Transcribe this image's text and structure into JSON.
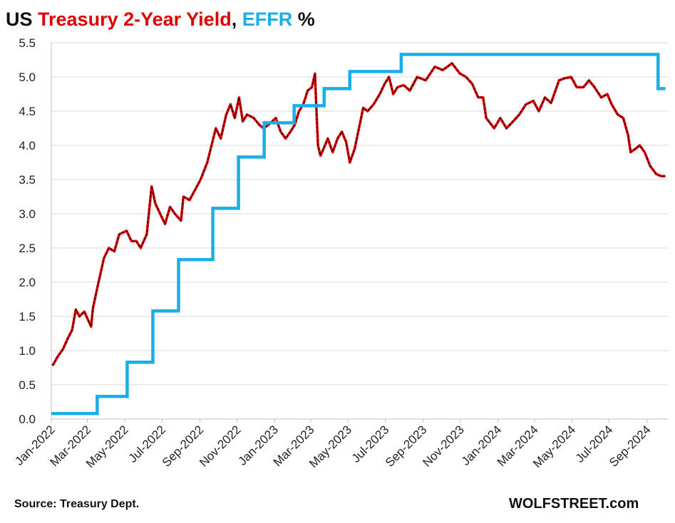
{
  "title": {
    "part1": "US ",
    "part2": "Treasury 2-Year Yield",
    "part3": ", ",
    "part4": "EFFR",
    "part5": " %",
    "color_dark": "#111111",
    "color_red": "#e00000",
    "color_blue": "#1aaee8"
  },
  "source": "Source: Treasury Dept.",
  "brand": "WOLFSTREET.com",
  "chart_data": {
    "type": "line",
    "title": "US Treasury 2-Year Yield, EFFR %",
    "xlabel": "",
    "ylabel": "",
    "ylim": [
      0,
      5.5
    ],
    "yticks": [
      "0.0",
      "0.5",
      "1.0",
      "1.5",
      "2.0",
      "2.5",
      "3.0",
      "3.5",
      "4.0",
      "4.5",
      "5.0",
      "5.5"
    ],
    "xticks": [
      "Jan-2022",
      "Mar-2022",
      "May-2022",
      "Jul-2022",
      "Sep-2022",
      "Nov-2022",
      "Jan-2023",
      "Mar-2023",
      "May-2023",
      "Jul-2023",
      "Sep-2023",
      "Nov-2023",
      "Jan-2024",
      "Mar-2024",
      "May-2024",
      "Jul-2024",
      "Sep-2024"
    ],
    "xrange": [
      "2022-01-01",
      "2024-10-05"
    ],
    "grid": true,
    "series": [
      {
        "name": "Treasury 2-Year Yield",
        "color": "#e00000",
        "shape": "line",
        "points": [
          [
            "2022-01-03",
            0.78
          ],
          [
            "2022-01-12",
            0.92
          ],
          [
            "2022-01-20",
            1.02
          ],
          [
            "2022-01-28",
            1.18
          ],
          [
            "2022-02-04",
            1.3
          ],
          [
            "2022-02-10",
            1.6
          ],
          [
            "2022-02-16",
            1.5
          ],
          [
            "2022-02-24",
            1.57
          ],
          [
            "2022-03-07",
            1.35
          ],
          [
            "2022-03-10",
            1.62
          ],
          [
            "2022-03-18",
            1.95
          ],
          [
            "2022-03-28",
            2.35
          ],
          [
            "2022-04-05",
            2.5
          ],
          [
            "2022-04-14",
            2.45
          ],
          [
            "2022-04-22",
            2.7
          ],
          [
            "2022-05-04",
            2.75
          ],
          [
            "2022-05-12",
            2.6
          ],
          [
            "2022-05-20",
            2.6
          ],
          [
            "2022-05-27",
            2.5
          ],
          [
            "2022-06-06",
            2.7
          ],
          [
            "2022-06-10",
            3.05
          ],
          [
            "2022-06-14",
            3.4
          ],
          [
            "2022-06-20",
            3.15
          ],
          [
            "2022-06-28",
            3.0
          ],
          [
            "2022-07-06",
            2.85
          ],
          [
            "2022-07-14",
            3.1
          ],
          [
            "2022-07-22",
            3.0
          ],
          [
            "2022-08-01",
            2.9
          ],
          [
            "2022-08-05",
            3.25
          ],
          [
            "2022-08-15",
            3.2
          ],
          [
            "2022-08-24",
            3.35
          ],
          [
            "2022-09-02",
            3.5
          ],
          [
            "2022-09-13",
            3.75
          ],
          [
            "2022-09-20",
            4.0
          ],
          [
            "2022-09-27",
            4.25
          ],
          [
            "2022-10-05",
            4.1
          ],
          [
            "2022-10-14",
            4.45
          ],
          [
            "2022-10-21",
            4.6
          ],
          [
            "2022-10-28",
            4.4
          ],
          [
            "2022-11-04",
            4.7
          ],
          [
            "2022-11-10",
            4.35
          ],
          [
            "2022-11-17",
            4.45
          ],
          [
            "2022-11-28",
            4.4
          ],
          [
            "2022-12-07",
            4.3
          ],
          [
            "2022-12-14",
            4.25
          ],
          [
            "2022-12-22",
            4.3
          ],
          [
            "2023-01-03",
            4.4
          ],
          [
            "2023-01-11",
            4.2
          ],
          [
            "2023-01-19",
            4.1
          ],
          [
            "2023-01-27",
            4.2
          ],
          [
            "2023-02-03",
            4.3
          ],
          [
            "2023-02-10",
            4.5
          ],
          [
            "2023-02-17",
            4.6
          ],
          [
            "2023-02-24",
            4.8
          ],
          [
            "2023-03-03",
            4.85
          ],
          [
            "2023-03-08",
            5.05
          ],
          [
            "2023-03-10",
            4.6
          ],
          [
            "2023-03-13",
            4.0
          ],
          [
            "2023-03-17",
            3.85
          ],
          [
            "2023-03-22",
            3.95
          ],
          [
            "2023-03-29",
            4.1
          ],
          [
            "2023-04-06",
            3.9
          ],
          [
            "2023-04-14",
            4.1
          ],
          [
            "2023-04-21",
            4.2
          ],
          [
            "2023-04-28",
            4.05
          ],
          [
            "2023-05-04",
            3.75
          ],
          [
            "2023-05-12",
            3.95
          ],
          [
            "2023-05-19",
            4.25
          ],
          [
            "2023-05-26",
            4.55
          ],
          [
            "2023-06-02",
            4.5
          ],
          [
            "2023-06-12",
            4.6
          ],
          [
            "2023-06-22",
            4.75
          ],
          [
            "2023-06-30",
            4.9
          ],
          [
            "2023-07-07",
            5.0
          ],
          [
            "2023-07-14",
            4.75
          ],
          [
            "2023-07-21",
            4.85
          ],
          [
            "2023-07-31",
            4.88
          ],
          [
            "2023-08-10",
            4.8
          ],
          [
            "2023-08-22",
            5.0
          ],
          [
            "2023-09-05",
            4.95
          ],
          [
            "2023-09-20",
            5.15
          ],
          [
            "2023-10-03",
            5.1
          ],
          [
            "2023-10-18",
            5.2
          ],
          [
            "2023-10-31",
            5.05
          ],
          [
            "2023-11-10",
            5.0
          ],
          [
            "2023-11-20",
            4.9
          ],
          [
            "2023-11-30",
            4.7
          ],
          [
            "2023-12-08",
            4.7
          ],
          [
            "2023-12-13",
            4.4
          ],
          [
            "2023-12-26",
            4.25
          ],
          [
            "2024-01-05",
            4.4
          ],
          [
            "2024-01-15",
            4.25
          ],
          [
            "2024-01-26",
            4.35
          ],
          [
            "2024-02-05",
            4.45
          ],
          [
            "2024-02-16",
            4.6
          ],
          [
            "2024-02-28",
            4.65
          ],
          [
            "2024-03-08",
            4.5
          ],
          [
            "2024-03-18",
            4.7
          ],
          [
            "2024-03-28",
            4.62
          ],
          [
            "2024-04-10",
            4.95
          ],
          [
            "2024-04-19",
            4.98
          ],
          [
            "2024-04-30",
            5.0
          ],
          [
            "2024-05-09",
            4.85
          ],
          [
            "2024-05-20",
            4.85
          ],
          [
            "2024-05-29",
            4.95
          ],
          [
            "2024-06-07",
            4.85
          ],
          [
            "2024-06-18",
            4.7
          ],
          [
            "2024-06-28",
            4.75
          ],
          [
            "2024-07-05",
            4.6
          ],
          [
            "2024-07-15",
            4.45
          ],
          [
            "2024-07-24",
            4.4
          ],
          [
            "2024-08-01",
            4.15
          ],
          [
            "2024-08-05",
            3.9
          ],
          [
            "2024-08-13",
            3.95
          ],
          [
            "2024-08-20",
            4.0
          ],
          [
            "2024-08-28",
            3.9
          ],
          [
            "2024-09-06",
            3.7
          ],
          [
            "2024-09-16",
            3.58
          ],
          [
            "2024-09-24",
            3.55
          ],
          [
            "2024-10-01",
            3.55
          ]
        ]
      },
      {
        "name": "EFFR",
        "color": "#1aaee8",
        "shape": "step",
        "points": [
          [
            "2022-01-01",
            0.08
          ],
          [
            "2022-03-17",
            0.33
          ],
          [
            "2022-05-05",
            0.83
          ],
          [
            "2022-06-16",
            1.58
          ],
          [
            "2022-07-28",
            2.33
          ],
          [
            "2022-09-22",
            3.08
          ],
          [
            "2022-11-03",
            3.83
          ],
          [
            "2022-12-15",
            4.33
          ],
          [
            "2023-02-02",
            4.58
          ],
          [
            "2023-03-23",
            4.83
          ],
          [
            "2023-05-04",
            5.08
          ],
          [
            "2023-07-27",
            5.33
          ],
          [
            "2024-09-19",
            4.83
          ],
          [
            "2024-10-01",
            4.83
          ]
        ]
      }
    ]
  }
}
